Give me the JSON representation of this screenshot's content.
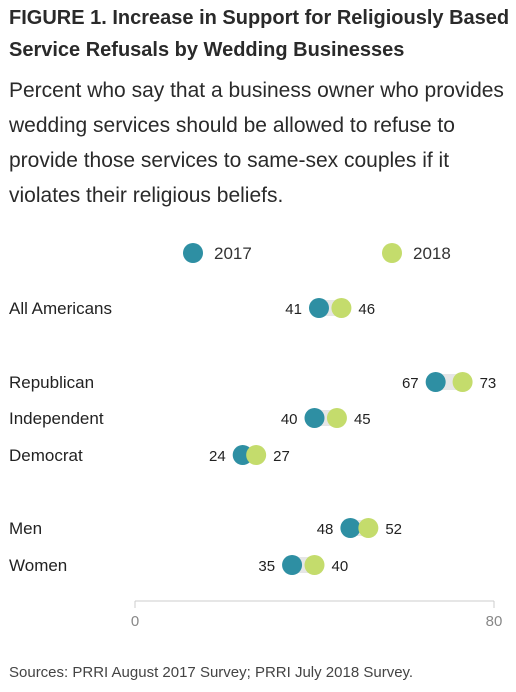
{
  "title": "FIGURE 1. Increase in Support for Religiously Based Service Refusals by Wedding Businesses",
  "subtitle": "Percent who say that a business owner who provides wedding services should be allowed to refuse to provide those services to same-sex couples if it violates their religious beliefs.",
  "source": "Sources: PRRI August 2017 Survey; PRRI July 2018 Survey.",
  "colors": {
    "series_2017": "#2e8fa3",
    "series_2018": "#c4dc6c",
    "connector": "#e6e6e6",
    "axis": "#cccccc"
  },
  "chart_data": {
    "type": "dot",
    "xlim": [
      0,
      80
    ],
    "x_ticks": [
      "0",
      "80"
    ],
    "legend_position": "top",
    "series": [
      {
        "name": "2017",
        "color": "#2e8fa3"
      },
      {
        "name": "2018",
        "color": "#c4dc6c"
      }
    ],
    "categories": [
      {
        "label": "All Americans",
        "v2017": 41,
        "v2018": 46
      },
      {
        "label": "Republican",
        "v2017": 67,
        "v2018": 73
      },
      {
        "label": "Independent",
        "v2017": 40,
        "v2018": 45
      },
      {
        "label": "Democrat",
        "v2017": 24,
        "v2018": 27
      },
      {
        "label": "Men",
        "v2017": 48,
        "v2018": 52
      },
      {
        "label": "Women",
        "v2017": 35,
        "v2018": 40
      }
    ]
  }
}
